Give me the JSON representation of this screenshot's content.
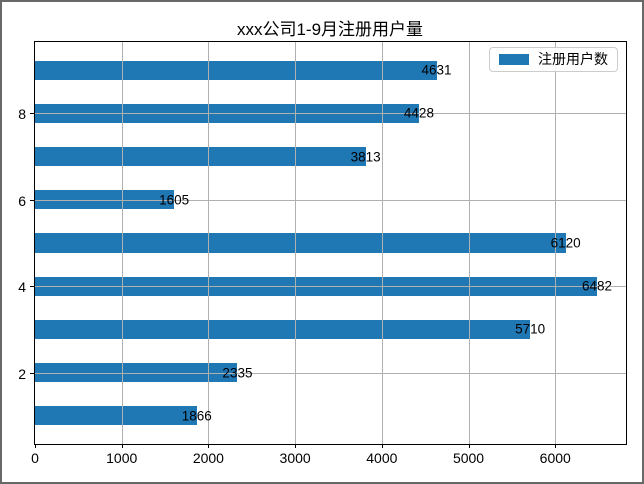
{
  "figure": {
    "title": "xxx公司1-9月注册用户量"
  },
  "legend": {
    "label": "注册用户数",
    "swatch_color": "#1f77b4",
    "position": "upper right"
  },
  "colors": {
    "bar": "#1f77b4",
    "grid": "#b0b0b0",
    "axis": "#000000",
    "legend_border": "#cccccc",
    "figure_border": "#686868",
    "background": "#ffffff"
  },
  "chart_data": {
    "type": "bar",
    "orientation": "horizontal",
    "title": "xxx公司1-9月注册用户量",
    "series": [
      {
        "name": "注册用户数",
        "color": "#1f77b4",
        "values": [
          1866,
          2335,
          5710,
          6482,
          6120,
          1605,
          3813,
          4428,
          4631
        ]
      }
    ],
    "y_positions": [
      1,
      2,
      3,
      4,
      5,
      6,
      7,
      8,
      9
    ],
    "bar_value_labels": [
      "1866",
      "2335",
      "5710",
      "6482",
      "6120",
      "1605",
      "3813",
      "4428",
      "4631"
    ],
    "x_ticks": [
      0,
      1000,
      2000,
      3000,
      4000,
      5000,
      6000
    ],
    "x_tick_labels": [
      "0",
      "1000",
      "2000",
      "3000",
      "4000",
      "5000",
      "6000"
    ],
    "y_ticks": [
      2,
      4,
      6,
      8
    ],
    "y_tick_labels": [
      "2",
      "4",
      "6",
      "8"
    ],
    "xlim": [
      0,
      6816
    ],
    "ylim": [
      0.35,
      9.65
    ],
    "bar_height_units": 0.44,
    "grid": true,
    "grid_over_bars": true,
    "legend_position": "upper right"
  }
}
